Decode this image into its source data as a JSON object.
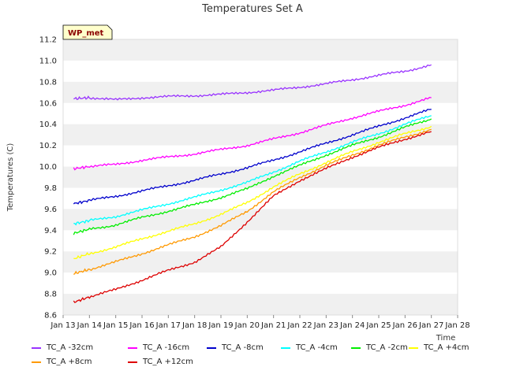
{
  "chart_data": {
    "type": "line",
    "title": "Temperatures Set A",
    "xlabel": "Time",
    "ylabel": "Temperatures (C)",
    "annotation": "WP_met",
    "x_ticks": [
      "Jan 13",
      "Jan 14",
      "Jan 15",
      "Jan 16",
      "Jan 17",
      "Jan 18",
      "Jan 19",
      "Jan 20",
      "Jan 21",
      "Jan 22",
      "Jan 23",
      "Jan 24",
      "Jan 25",
      "Jan 26",
      "Jan 27",
      "Jan 28"
    ],
    "xlim": [
      13,
      28
    ],
    "ylim": [
      8.6,
      11.2
    ],
    "y_ticks": [
      8.6,
      8.8,
      9.0,
      9.2,
      9.4,
      9.6,
      9.8,
      10.0,
      10.2,
      10.4,
      10.6,
      10.8,
      11.0,
      11.2
    ],
    "grid": "horizontal bands",
    "x": [
      13.4,
      14.0,
      15.0,
      16.0,
      17.0,
      18.0,
      19.0,
      20.0,
      21.0,
      22.0,
      23.0,
      24.0,
      25.0,
      26.0,
      27.0
    ],
    "series": [
      {
        "name": "TC_A -32cm",
        "color": "#9933ff",
        "values": [
          10.64,
          10.65,
          10.63,
          10.65,
          10.66,
          10.67,
          10.68,
          10.7,
          10.72,
          10.75,
          10.78,
          10.82,
          10.86,
          10.9,
          10.96
        ]
      },
      {
        "name": "TC_A -16cm",
        "color": "#ff00ff",
        "values": [
          9.98,
          10.0,
          10.02,
          10.06,
          10.09,
          10.12,
          10.16,
          10.2,
          10.26,
          10.32,
          10.39,
          10.46,
          10.52,
          10.58,
          10.65
        ]
      },
      {
        "name": "TC_A -8cm",
        "color": "#0000cc",
        "values": [
          9.65,
          9.68,
          9.72,
          9.77,
          9.82,
          9.87,
          9.93,
          9.99,
          10.06,
          10.14,
          10.22,
          10.3,
          10.38,
          10.46,
          10.54
        ]
      },
      {
        "name": "TC_A -4cm",
        "color": "#00ffff",
        "values": [
          9.46,
          9.49,
          9.53,
          9.59,
          9.65,
          9.71,
          9.78,
          9.85,
          9.95,
          10.05,
          10.14,
          10.23,
          10.31,
          10.4,
          10.48
        ]
      },
      {
        "name": "TC_A -2cm",
        "color": "#00ee00",
        "values": [
          9.37,
          9.41,
          9.45,
          9.52,
          9.58,
          9.64,
          9.71,
          9.79,
          9.91,
          10.01,
          10.11,
          10.2,
          10.28,
          10.37,
          10.45
        ]
      },
      {
        "name": "TC_A +4cm",
        "color": "#ffff00",
        "values": [
          9.13,
          9.18,
          9.24,
          9.32,
          9.39,
          9.46,
          9.55,
          9.66,
          9.81,
          9.93,
          10.04,
          10.14,
          10.23,
          10.31,
          10.38
        ]
      },
      {
        "name": "TC_A +8cm",
        "color": "#ff9900",
        "values": [
          8.99,
          9.03,
          9.1,
          9.18,
          9.26,
          9.34,
          9.44,
          9.58,
          9.76,
          9.9,
          10.01,
          10.11,
          10.2,
          10.28,
          10.35
        ]
      },
      {
        "name": "TC_A +12cm",
        "color": "#dd0000",
        "values": [
          8.72,
          8.77,
          8.84,
          8.93,
          9.02,
          9.1,
          9.24,
          9.48,
          9.72,
          9.87,
          9.98,
          10.09,
          10.18,
          10.26,
          10.33
        ]
      }
    ]
  }
}
